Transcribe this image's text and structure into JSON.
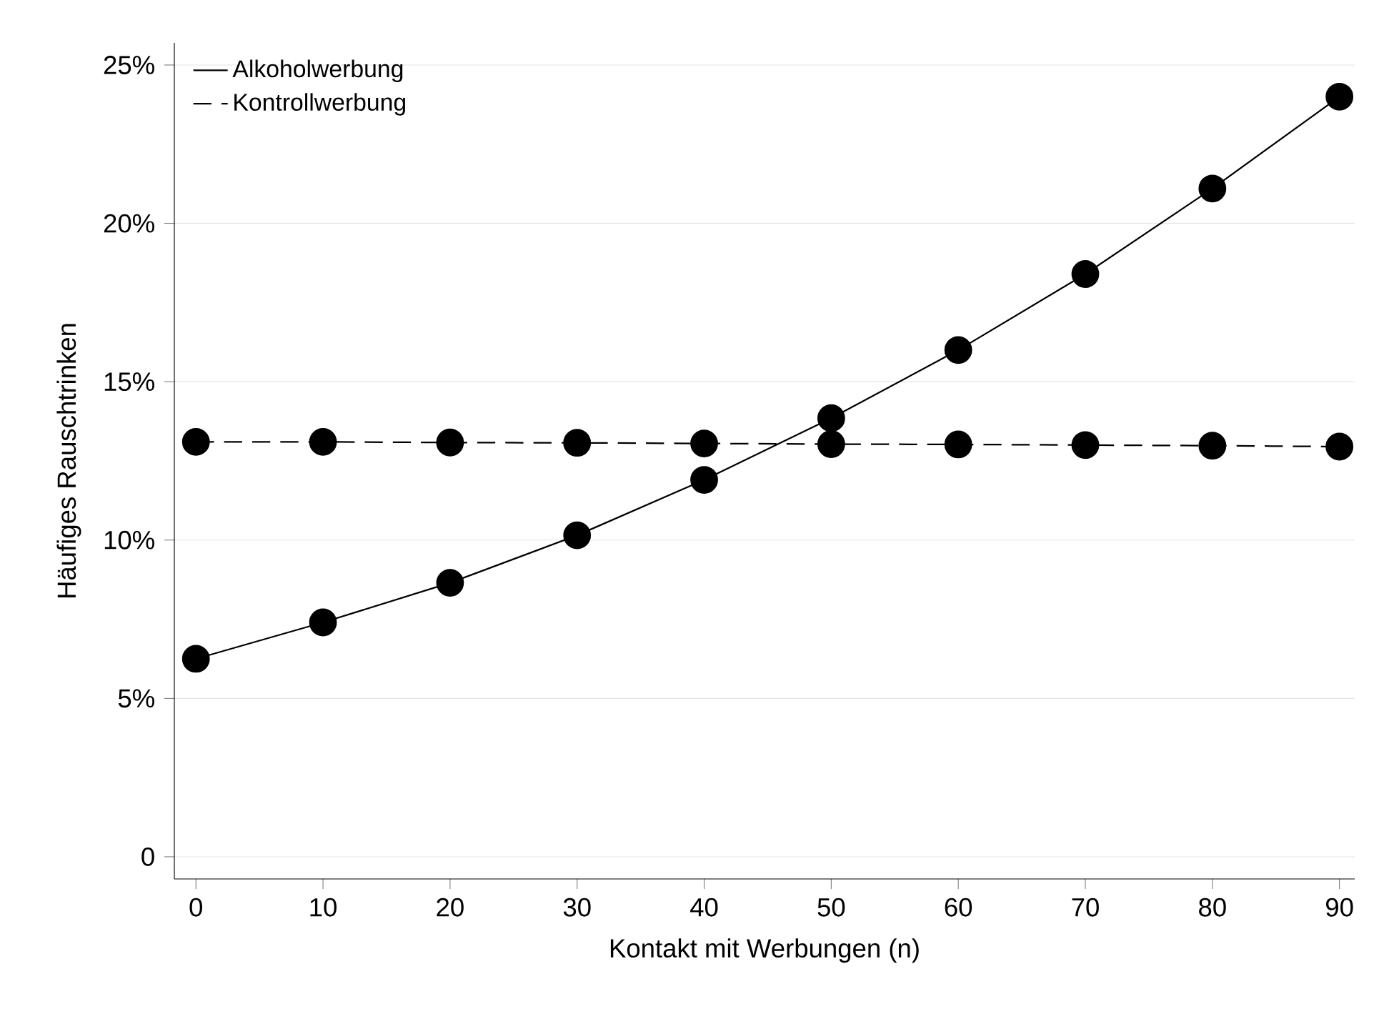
{
  "chart_data": {
    "type": "line",
    "xlabel": "Kontakt mit Werbungen (n)",
    "ylabel": "Häufiges Rauschtrinken",
    "x": [
      0,
      10,
      20,
      30,
      40,
      50,
      60,
      70,
      80,
      90
    ],
    "series": [
      {
        "name": "Alkoholwerbung",
        "color": "#000000",
        "line_style": "solid",
        "values": [
          6.25,
          7.4,
          8.65,
          10.15,
          11.9,
          13.85,
          16.0,
          18.4,
          21.1,
          24.0
        ]
      },
      {
        "name": "Kontrollwerbung",
        "color": "#000000",
        "line_style": "dashed",
        "values": [
          13.1,
          13.1,
          13.08,
          13.07,
          13.05,
          13.03,
          13.02,
          13.0,
          12.98,
          12.95
        ]
      }
    ],
    "xlim": [
      -1.7,
      91.2
    ],
    "ylim": [
      -0.7,
      25.7
    ],
    "xticks": [
      0,
      10,
      20,
      30,
      40,
      50,
      60,
      70,
      80,
      90
    ],
    "yticks": [
      0,
      {
        "value": 5,
        "label": "5%"
      },
      {
        "value": 10,
        "label": "10%"
      },
      {
        "value": 15,
        "label": "15%"
      },
      {
        "value": 20,
        "label": "20%"
      },
      {
        "value": 25,
        "label": "25%"
      }
    ],
    "grid": "y",
    "legend": "top left",
    "marker": "circle"
  }
}
